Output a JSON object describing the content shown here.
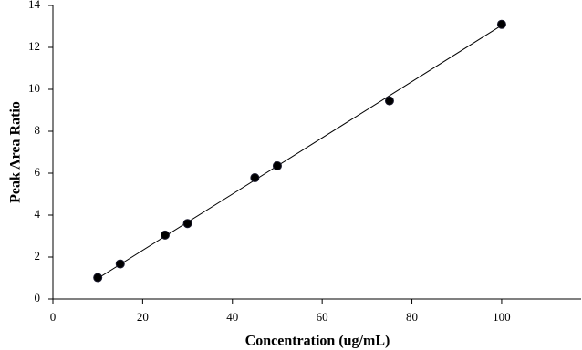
{
  "chart_data": {
    "type": "scatter",
    "x_label": "Concentration (ug/mL)",
    "y_label": "Peak Area Ratio",
    "series": [
      {
        "color": "#000000",
        "x": [
          10,
          15,
          25,
          30,
          45,
          50,
          75,
          100
        ],
        "values": [
          1.02,
          1.67,
          3.05,
          3.6,
          5.78,
          6.35,
          9.45,
          13.1
        ]
      }
    ],
    "trendline": {
      "x": [
        10,
        100
      ],
      "values": [
        0.98,
        13.05
      ],
      "color": "#000000"
    },
    "xlim": [
      0,
      117.7
    ],
    "xticks": [
      0,
      20,
      40,
      60,
      80,
      100
    ],
    "ylim": [
      0,
      14
    ],
    "yticks": [
      0,
      2,
      4,
      6,
      8,
      10,
      12,
      14
    ],
    "grid": false
  }
}
